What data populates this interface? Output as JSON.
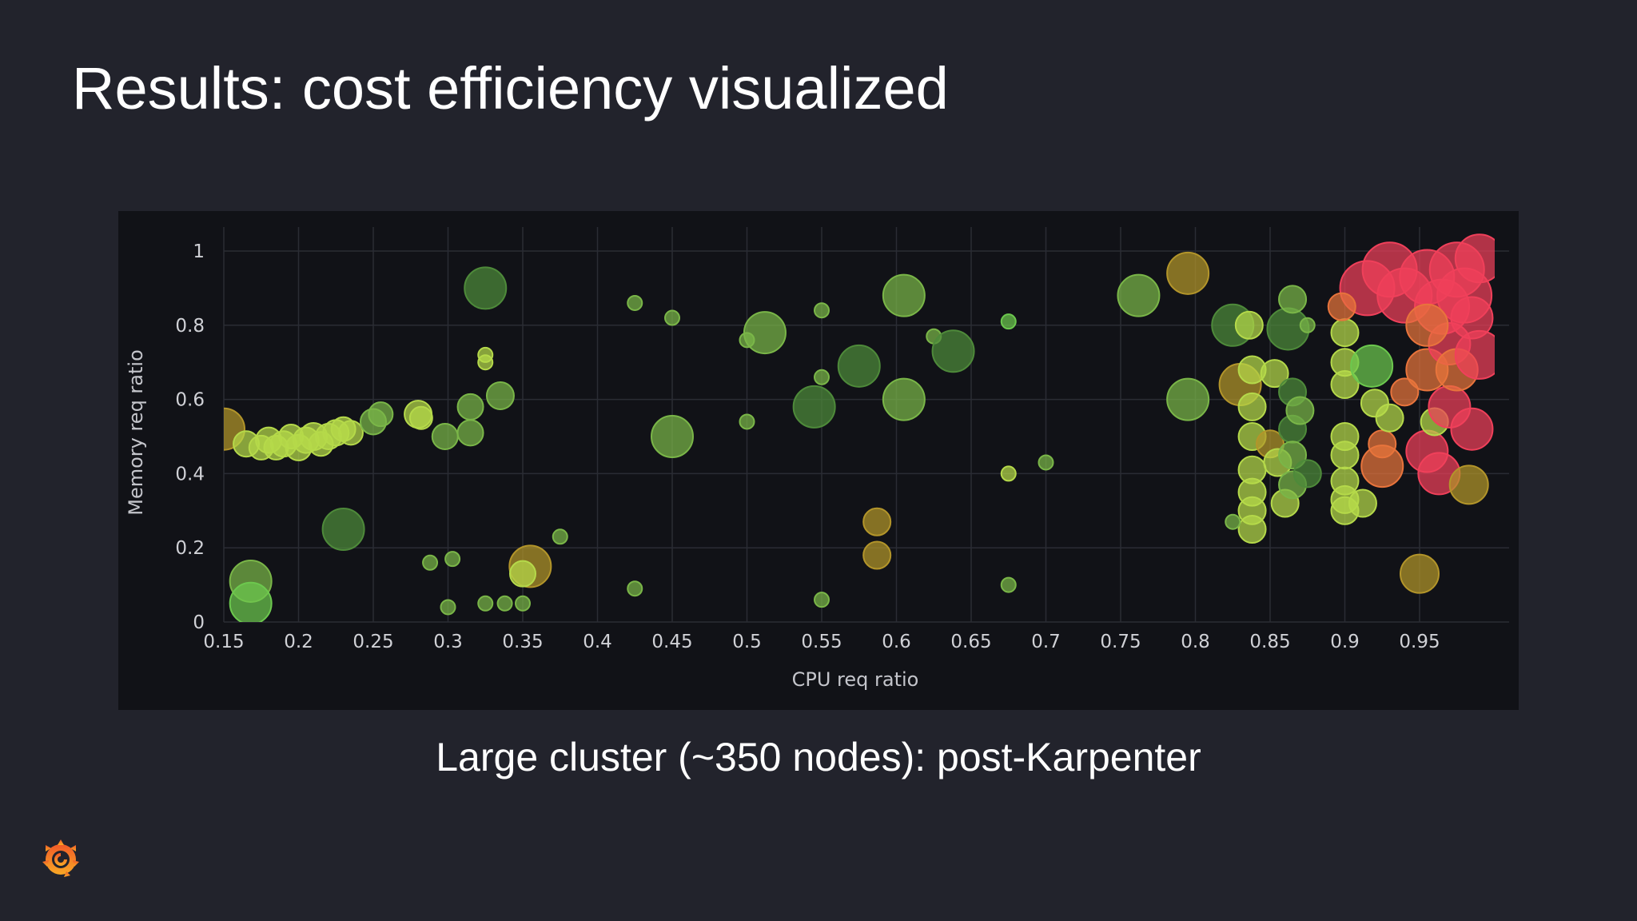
{
  "slide": {
    "title": "Results: cost efficiency visualized",
    "caption": "Large cluster (~350 nodes): post-Karpenter",
    "logo_icon": "grafana-logo-icon",
    "background": "#22232c",
    "panel_background": "#111217"
  },
  "chart_data": {
    "type": "scatter",
    "title": "",
    "xlabel": "CPU req ratio",
    "ylabel": "Memory req ratio",
    "xlim": [
      0.15,
      0.99
    ],
    "ylim": [
      0,
      1.02
    ],
    "x_ticks": [
      0.15,
      0.2,
      0.25,
      0.3,
      0.35,
      0.4,
      0.45,
      0.5,
      0.55,
      0.6,
      0.65,
      0.7,
      0.75,
      0.8,
      0.85,
      0.9,
      0.95
    ],
    "x_tick_labels": [
      "0.15",
      "0.2",
      "0.25",
      "0.3",
      "0.35",
      "0.4",
      "0.45",
      "0.5",
      "0.55",
      "0.6",
      "0.65",
      "0.7",
      "0.75",
      "0.8",
      "0.85",
      "0.9",
      "0.95"
    ],
    "y_ticks": [
      0,
      0.2,
      0.4,
      0.6,
      0.8,
      1
    ],
    "y_tick_labels": [
      "0",
      "0.2",
      "0.4",
      "0.6",
      "0.8",
      "1"
    ],
    "grid": true,
    "legend": "none",
    "point_colors": {
      "dark-green": "#4e8a3a",
      "green": "#7ab648",
      "bright-green": "#6cc84e",
      "yellow-green": "#b5d94a",
      "olive": "#b3952a",
      "orange": "#e8743c",
      "red": "#f0405a"
    },
    "points": [
      {
        "x": 0.15,
        "y": 0.52,
        "s": 26,
        "c": "olive"
      },
      {
        "x": 0.165,
        "y": 0.48,
        "s": 16,
        "c": "yellow-green"
      },
      {
        "x": 0.175,
        "y": 0.47,
        "s": 15,
        "c": "yellow-green"
      },
      {
        "x": 0.18,
        "y": 0.49,
        "s": 16,
        "c": "yellow-green"
      },
      {
        "x": 0.185,
        "y": 0.47,
        "s": 15,
        "c": "yellow-green"
      },
      {
        "x": 0.19,
        "y": 0.48,
        "s": 16,
        "c": "yellow-green"
      },
      {
        "x": 0.195,
        "y": 0.5,
        "s": 15,
        "c": "yellow-green"
      },
      {
        "x": 0.2,
        "y": 0.47,
        "s": 16,
        "c": "yellow-green"
      },
      {
        "x": 0.205,
        "y": 0.49,
        "s": 16,
        "c": "yellow-green"
      },
      {
        "x": 0.21,
        "y": 0.5,
        "s": 17,
        "c": "yellow-green"
      },
      {
        "x": 0.215,
        "y": 0.48,
        "s": 15,
        "c": "yellow-green"
      },
      {
        "x": 0.22,
        "y": 0.5,
        "s": 16,
        "c": "yellow-green"
      },
      {
        "x": 0.225,
        "y": 0.51,
        "s": 16,
        "c": "yellow-green"
      },
      {
        "x": 0.23,
        "y": 0.52,
        "s": 15,
        "c": "yellow-green"
      },
      {
        "x": 0.235,
        "y": 0.51,
        "s": 15,
        "c": "yellow-green"
      },
      {
        "x": 0.25,
        "y": 0.54,
        "s": 16,
        "c": "green"
      },
      {
        "x": 0.255,
        "y": 0.56,
        "s": 15,
        "c": "green"
      },
      {
        "x": 0.28,
        "y": 0.56,
        "s": 17,
        "c": "yellow-green"
      },
      {
        "x": 0.282,
        "y": 0.55,
        "s": 14,
        "c": "yellow-green"
      },
      {
        "x": 0.298,
        "y": 0.5,
        "s": 16,
        "c": "green"
      },
      {
        "x": 0.315,
        "y": 0.58,
        "s": 16,
        "c": "green"
      },
      {
        "x": 0.315,
        "y": 0.51,
        "s": 16,
        "c": "green"
      },
      {
        "x": 0.325,
        "y": 0.72,
        "s": 9,
        "c": "yellow-green"
      },
      {
        "x": 0.325,
        "y": 0.7,
        "s": 9,
        "c": "yellow-green"
      },
      {
        "x": 0.325,
        "y": 0.9,
        "s": 26,
        "c": "dark-green"
      },
      {
        "x": 0.335,
        "y": 0.61,
        "s": 17,
        "c": "green"
      },
      {
        "x": 0.23,
        "y": 0.25,
        "s": 26,
        "c": "dark-green"
      },
      {
        "x": 0.168,
        "y": 0.11,
        "s": 26,
        "c": "green"
      },
      {
        "x": 0.168,
        "y": 0.05,
        "s": 26,
        "c": "bright-green"
      },
      {
        "x": 0.288,
        "y": 0.16,
        "s": 9,
        "c": "green"
      },
      {
        "x": 0.303,
        "y": 0.17,
        "s": 9,
        "c": "green"
      },
      {
        "x": 0.3,
        "y": 0.04,
        "s": 9,
        "c": "green"
      },
      {
        "x": 0.325,
        "y": 0.05,
        "s": 9,
        "c": "green"
      },
      {
        "x": 0.338,
        "y": 0.05,
        "s": 9,
        "c": "green"
      },
      {
        "x": 0.35,
        "y": 0.05,
        "s": 9,
        "c": "green"
      },
      {
        "x": 0.355,
        "y": 0.15,
        "s": 26,
        "c": "olive"
      },
      {
        "x": 0.35,
        "y": 0.13,
        "s": 16,
        "c": "yellow-green"
      },
      {
        "x": 0.375,
        "y": 0.23,
        "s": 9,
        "c": "green"
      },
      {
        "x": 0.425,
        "y": 0.86,
        "s": 9,
        "c": "green"
      },
      {
        "x": 0.45,
        "y": 0.82,
        "s": 9,
        "c": "green"
      },
      {
        "x": 0.45,
        "y": 0.5,
        "s": 26,
        "c": "green"
      },
      {
        "x": 0.425,
        "y": 0.09,
        "s": 9,
        "c": "green"
      },
      {
        "x": 0.5,
        "y": 0.76,
        "s": 9,
        "c": "green"
      },
      {
        "x": 0.512,
        "y": 0.78,
        "s": 26,
        "c": "green"
      },
      {
        "x": 0.5,
        "y": 0.54,
        "s": 9,
        "c": "green"
      },
      {
        "x": 0.545,
        "y": 0.58,
        "s": 26,
        "c": "dark-green"
      },
      {
        "x": 0.55,
        "y": 0.84,
        "s": 9,
        "c": "green"
      },
      {
        "x": 0.55,
        "y": 0.66,
        "s": 9,
        "c": "green"
      },
      {
        "x": 0.575,
        "y": 0.69,
        "s": 26,
        "c": "dark-green"
      },
      {
        "x": 0.55,
        "y": 0.06,
        "s": 9,
        "c": "green"
      },
      {
        "x": 0.587,
        "y": 0.27,
        "s": 17,
        "c": "olive"
      },
      {
        "x": 0.587,
        "y": 0.18,
        "s": 17,
        "c": "olive"
      },
      {
        "x": 0.605,
        "y": 0.88,
        "s": 26,
        "c": "green"
      },
      {
        "x": 0.605,
        "y": 0.6,
        "s": 26,
        "c": "green"
      },
      {
        "x": 0.625,
        "y": 0.77,
        "s": 9,
        "c": "green"
      },
      {
        "x": 0.638,
        "y": 0.73,
        "s": 26,
        "c": "dark-green"
      },
      {
        "x": 0.675,
        "y": 0.81,
        "s": 9,
        "c": "bright-green"
      },
      {
        "x": 0.675,
        "y": 0.4,
        "s": 9,
        "c": "yellow-green"
      },
      {
        "x": 0.7,
        "y": 0.43,
        "s": 9,
        "c": "green"
      },
      {
        "x": 0.675,
        "y": 0.1,
        "s": 9,
        "c": "green"
      },
      {
        "x": 0.762,
        "y": 0.88,
        "s": 26,
        "c": "green"
      },
      {
        "x": 0.795,
        "y": 0.94,
        "s": 26,
        "c": "olive"
      },
      {
        "x": 0.795,
        "y": 0.6,
        "s": 26,
        "c": "green"
      },
      {
        "x": 0.825,
        "y": 0.8,
        "s": 26,
        "c": "dark-green"
      },
      {
        "x": 0.83,
        "y": 0.64,
        "s": 26,
        "c": "olive"
      },
      {
        "x": 0.836,
        "y": 0.8,
        "s": 17,
        "c": "yellow-green"
      },
      {
        "x": 0.838,
        "y": 0.68,
        "s": 17,
        "c": "yellow-green"
      },
      {
        "x": 0.838,
        "y": 0.58,
        "s": 17,
        "c": "yellow-green"
      },
      {
        "x": 0.838,
        "y": 0.5,
        "s": 17,
        "c": "yellow-green"
      },
      {
        "x": 0.838,
        "y": 0.41,
        "s": 17,
        "c": "yellow-green"
      },
      {
        "x": 0.838,
        "y": 0.35,
        "s": 17,
        "c": "yellow-green"
      },
      {
        "x": 0.838,
        "y": 0.3,
        "s": 17,
        "c": "yellow-green"
      },
      {
        "x": 0.838,
        "y": 0.25,
        "s": 17,
        "c": "yellow-green"
      },
      {
        "x": 0.825,
        "y": 0.27,
        "s": 9,
        "c": "green"
      },
      {
        "x": 0.85,
        "y": 0.48,
        "s": 17,
        "c": "olive"
      },
      {
        "x": 0.855,
        "y": 0.43,
        "s": 17,
        "c": "yellow-green"
      },
      {
        "x": 0.853,
        "y": 0.67,
        "s": 17,
        "c": "yellow-green"
      },
      {
        "x": 0.86,
        "y": 0.32,
        "s": 17,
        "c": "yellow-green"
      },
      {
        "x": 0.862,
        "y": 0.79,
        "s": 26,
        "c": "dark-green"
      },
      {
        "x": 0.865,
        "y": 0.87,
        "s": 17,
        "c": "green"
      },
      {
        "x": 0.865,
        "y": 0.62,
        "s": 17,
        "c": "dark-green"
      },
      {
        "x": 0.865,
        "y": 0.52,
        "s": 17,
        "c": "dark-green"
      },
      {
        "x": 0.865,
        "y": 0.45,
        "s": 17,
        "c": "green"
      },
      {
        "x": 0.865,
        "y": 0.37,
        "s": 17,
        "c": "green"
      },
      {
        "x": 0.87,
        "y": 0.57,
        "s": 17,
        "c": "green"
      },
      {
        "x": 0.875,
        "y": 0.8,
        "s": 9,
        "c": "green"
      },
      {
        "x": 0.875,
        "y": 0.4,
        "s": 17,
        "c": "dark-green"
      },
      {
        "x": 0.9,
        "y": 0.78,
        "s": 17,
        "c": "yellow-green"
      },
      {
        "x": 0.9,
        "y": 0.7,
        "s": 17,
        "c": "yellow-green"
      },
      {
        "x": 0.9,
        "y": 0.64,
        "s": 17,
        "c": "yellow-green"
      },
      {
        "x": 0.9,
        "y": 0.5,
        "s": 17,
        "c": "yellow-green"
      },
      {
        "x": 0.9,
        "y": 0.45,
        "s": 17,
        "c": "yellow-green"
      },
      {
        "x": 0.9,
        "y": 0.38,
        "s": 17,
        "c": "yellow-green"
      },
      {
        "x": 0.9,
        "y": 0.33,
        "s": 17,
        "c": "yellow-green"
      },
      {
        "x": 0.9,
        "y": 0.3,
        "s": 17,
        "c": "yellow-green"
      },
      {
        "x": 0.912,
        "y": 0.32,
        "s": 17,
        "c": "yellow-green"
      },
      {
        "x": 0.918,
        "y": 0.69,
        "s": 26,
        "c": "bright-green"
      },
      {
        "x": 0.92,
        "y": 0.59,
        "s": 17,
        "c": "yellow-green"
      },
      {
        "x": 0.925,
        "y": 0.48,
        "s": 17,
        "c": "orange"
      },
      {
        "x": 0.925,
        "y": 0.42,
        "s": 26,
        "c": "orange"
      },
      {
        "x": 0.93,
        "y": 0.55,
        "s": 17,
        "c": "yellow-green"
      },
      {
        "x": 0.94,
        "y": 0.62,
        "s": 17,
        "c": "orange"
      },
      {
        "x": 0.95,
        "y": 0.13,
        "s": 24,
        "c": "olive"
      },
      {
        "x": 0.955,
        "y": 0.68,
        "s": 26,
        "c": "orange"
      },
      {
        "x": 0.955,
        "y": 0.46,
        "s": 26,
        "c": "red"
      },
      {
        "x": 0.96,
        "y": 0.54,
        "s": 17,
        "c": "yellow-green"
      },
      {
        "x": 0.963,
        "y": 0.4,
        "s": 26,
        "c": "red"
      },
      {
        "x": 0.97,
        "y": 0.58,
        "s": 26,
        "c": "red"
      },
      {
        "x": 0.97,
        "y": 0.75,
        "s": 26,
        "c": "red"
      },
      {
        "x": 0.975,
        "y": 0.68,
        "s": 26,
        "c": "orange"
      },
      {
        "x": 0.983,
        "y": 0.37,
        "s": 24,
        "c": "olive"
      },
      {
        "x": 0.985,
        "y": 0.52,
        "s": 26,
        "c": "red"
      },
      {
        "x": 0.985,
        "y": 0.82,
        "s": 26,
        "c": "red"
      },
      {
        "x": 0.915,
        "y": 0.9,
        "s": 34,
        "c": "red"
      },
      {
        "x": 0.93,
        "y": 0.95,
        "s": 34,
        "c": "red"
      },
      {
        "x": 0.94,
        "y": 0.88,
        "s": 34,
        "c": "red"
      },
      {
        "x": 0.955,
        "y": 0.93,
        "s": 34,
        "c": "red"
      },
      {
        "x": 0.965,
        "y": 0.85,
        "s": 34,
        "c": "red"
      },
      {
        "x": 0.975,
        "y": 0.95,
        "s": 34,
        "c": "red"
      },
      {
        "x": 0.98,
        "y": 0.88,
        "s": 34,
        "c": "red"
      },
      {
        "x": 0.99,
        "y": 0.98,
        "s": 30,
        "c": "red"
      },
      {
        "x": 0.99,
        "y": 0.72,
        "s": 30,
        "c": "red"
      },
      {
        "x": 0.955,
        "y": 0.8,
        "s": 26,
        "c": "orange"
      },
      {
        "x": 0.898,
        "y": 0.85,
        "s": 17,
        "c": "orange"
      }
    ]
  }
}
